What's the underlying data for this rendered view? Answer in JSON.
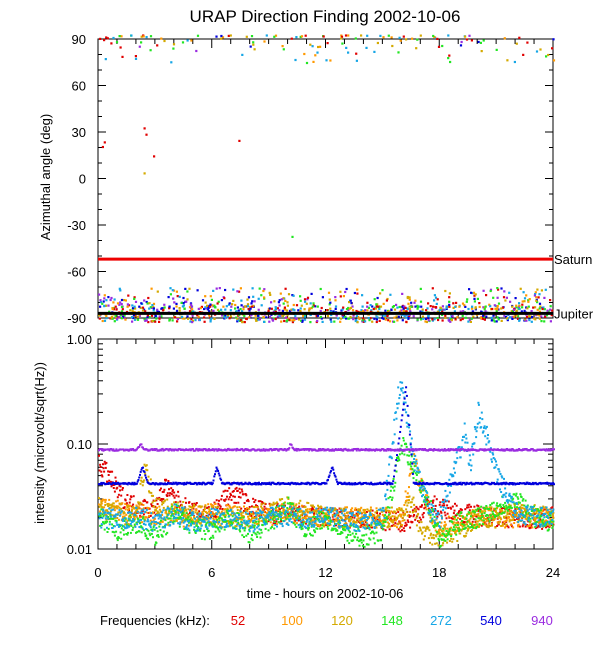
{
  "title": "URAP Direction Finding  2002-10-06",
  "freq_legend_label": "Frequencies (kHz):",
  "frequencies": [
    {
      "label": "52",
      "color": "#e00000"
    },
    {
      "label": "100",
      "color": "#ff9900"
    },
    {
      "label": "120",
      "color": "#d4aa00"
    },
    {
      "label": "148",
      "color": "#22e622"
    },
    {
      "label": "272",
      "color": "#16a6e6"
    },
    {
      "label": "540",
      "color": "#0000dd"
    },
    {
      "label": "940",
      "color": "#9a2be0"
    }
  ],
  "chart_data": [
    {
      "type": "scatter",
      "ylabel": "Azimuthal angle (deg)",
      "xlim": [
        0,
        24
      ],
      "ylim": [
        -90,
        90
      ],
      "yticks": [
        90,
        60,
        30,
        0,
        -30,
        -60,
        -90
      ],
      "reference_lines": [
        {
          "name": "Saturn",
          "value": -52,
          "color": "#ee0000"
        },
        {
          "name": "Jupiter",
          "value": -87,
          "color": "#000000"
        }
      ],
      "approximate_point_bands": [
        {
          "y_range": [
            -92,
            -70
          ],
          "series": [
            "52",
            "100",
            "120",
            "148",
            "272",
            "540",
            "940"
          ],
          "description": "dense scatter near -90"
        },
        {
          "y_range": [
            75,
            93
          ],
          "series": [
            "52",
            "100",
            "120",
            "148",
            "272",
            "540",
            "940"
          ],
          "description": "sparse scatter near +90"
        }
      ],
      "isolated_points": [
        {
          "x": 0.2,
          "y": 21,
          "series": "52"
        },
        {
          "x": 0.3,
          "y": 24,
          "series": "52"
        },
        {
          "x": 2.4,
          "y": 33,
          "series": "52"
        },
        {
          "x": 2.5,
          "y": 29,
          "series": "52"
        },
        {
          "x": 2.9,
          "y": 15,
          "series": "52"
        },
        {
          "x": 7.4,
          "y": 25,
          "series": "52"
        },
        {
          "x": 2.4,
          "y": 4,
          "series": "120"
        },
        {
          "x": 10.2,
          "y": -37,
          "series": "148"
        }
      ]
    },
    {
      "type": "line",
      "xlabel": "time - hours on 2002-10-06",
      "ylabel": "intensity (microvolt/sqrt(Hz))",
      "xlim": [
        0,
        24
      ],
      "ylim": [
        0.01,
        1.0
      ],
      "yscale": "log",
      "xticks": [
        0,
        6,
        12,
        18,
        24
      ],
      "yticks": [
        "0.01",
        "0.10",
        "1.00"
      ],
      "series": [
        {
          "name": "940",
          "x": [
            0,
            2,
            2.2,
            2.4,
            4,
            6,
            8,
            10,
            10.1,
            10.3,
            12,
            14,
            15.8,
            16.2,
            18,
            20,
            22,
            24
          ],
          "y": [
            0.088,
            0.088,
            0.1,
            0.088,
            0.088,
            0.088,
            0.088,
            0.088,
            0.1,
            0.088,
            0.088,
            0.088,
            0.088,
            0.088,
            0.088,
            0.088,
            0.088,
            0.088
          ]
        },
        {
          "name": "540",
          "x": [
            0,
            2,
            2.3,
            2.6,
            6,
            6.2,
            6.5,
            8,
            12,
            12.3,
            12.6,
            15.5,
            15.8,
            16.2,
            16.6,
            18,
            20.2,
            20.5,
            20.8,
            24
          ],
          "y": [
            0.042,
            0.042,
            0.06,
            0.042,
            0.042,
            0.06,
            0.042,
            0.042,
            0.042,
            0.06,
            0.042,
            0.042,
            0.1,
            0.35,
            0.042,
            0.042,
            0.042,
            0.042,
            0.042,
            0.042
          ]
        },
        {
          "name": "272",
          "x": [
            0,
            1,
            2,
            3,
            4,
            5,
            6,
            7,
            8,
            9,
            10,
            11,
            12,
            13,
            14,
            15,
            15.8,
            16,
            16.3,
            16.8,
            17.5,
            18,
            19,
            19.3,
            19.6,
            20,
            20.3,
            21,
            22,
            23,
            24
          ],
          "y": [
            0.02,
            0.019,
            0.02,
            0.018,
            0.022,
            0.018,
            0.02,
            0.019,
            0.018,
            0.02,
            0.021,
            0.019,
            0.02,
            0.019,
            0.018,
            0.02,
            0.3,
            0.35,
            0.15,
            0.05,
            0.022,
            0.02,
            0.08,
            0.13,
            0.06,
            0.2,
            0.15,
            0.05,
            0.022,
            0.02,
            0.02
          ]
        },
        {
          "name": "148",
          "x": [
            0,
            1,
            2,
            3,
            4,
            5,
            6,
            7,
            8,
            9,
            10,
            11,
            12,
            13,
            14,
            15,
            16,
            17,
            17.5,
            18,
            19,
            20,
            21,
            22,
            23,
            24
          ],
          "y": [
            0.02,
            0.015,
            0.018,
            0.013,
            0.022,
            0.016,
            0.015,
            0.02,
            0.014,
            0.018,
            0.025,
            0.015,
            0.02,
            0.014,
            0.013,
            0.015,
            0.1,
            0.04,
            0.025,
            0.012,
            0.018,
            0.02,
            0.025,
            0.03,
            0.02,
            0.018
          ]
        },
        {
          "name": "120",
          "x": [
            0,
            2,
            2.4,
            3,
            6,
            8,
            10,
            12,
            14,
            16,
            16.5,
            17,
            18,
            19,
            20,
            21,
            22,
            24
          ],
          "y": [
            0.025,
            0.02,
            0.06,
            0.025,
            0.02,
            0.02,
            0.025,
            0.02,
            0.02,
            0.02,
            0.03,
            0.015,
            0.013,
            0.015,
            0.02,
            0.02,
            0.022,
            0.02
          ]
        },
        {
          "name": "100",
          "x": [
            0,
            2,
            4,
            6,
            8,
            10,
            12,
            14,
            16,
            16.6,
            17.5,
            18,
            19,
            20,
            22,
            24
          ],
          "y": [
            0.025,
            0.022,
            0.02,
            0.022,
            0.02,
            0.022,
            0.02,
            0.02,
            0.02,
            0.07,
            0.02,
            0.016,
            0.018,
            0.02,
            0.02,
            0.02
          ]
        },
        {
          "name": "52",
          "x": [
            0,
            0.5,
            1,
            1.5,
            2,
            3,
            3.5,
            4,
            4.5,
            5,
            6,
            7,
            7.5,
            8,
            9,
            10,
            12,
            14,
            16,
            16.5,
            17.5,
            18,
            19,
            20,
            21,
            22,
            23,
            24
          ],
          "y": [
            0.065,
            0.05,
            0.035,
            0.028,
            0.025,
            0.024,
            0.04,
            0.03,
            0.025,
            0.022,
            0.022,
            0.035,
            0.03,
            0.025,
            0.022,
            0.021,
            0.02,
            0.019,
            0.018,
            0.02,
            0.027,
            0.024,
            0.022,
            0.021,
            0.02,
            0.02,
            0.019,
            0.02
          ]
        }
      ]
    }
  ]
}
